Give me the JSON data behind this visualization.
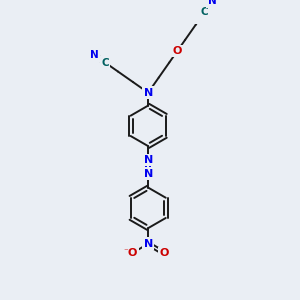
{
  "bg_color": "#eaeef4",
  "bond_color": "#1a1a1a",
  "N_color": "#0000ee",
  "O_color": "#cc0000",
  "C_color": "#006060",
  "lw": 1.4,
  "fs": 7.5,
  "fig_w": 3.0,
  "fig_h": 3.0,
  "dpi": 100,
  "xlim": [
    0,
    300
  ],
  "ylim": [
    0,
    300
  ]
}
